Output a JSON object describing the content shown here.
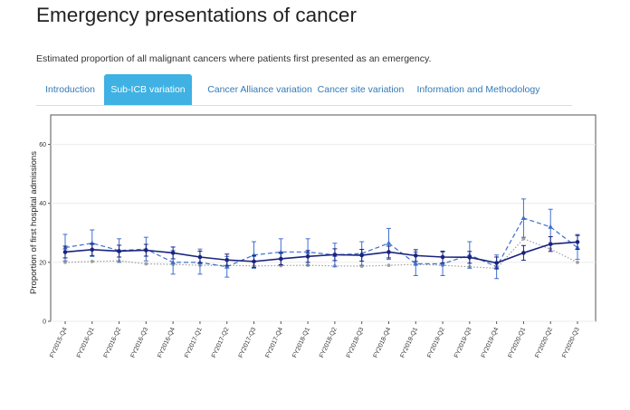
{
  "page": {
    "title": "Emergency presentations of cancer",
    "subtitle": "Estimated proportion of all malignant cancers where patients first presented as an emergency."
  },
  "tabs": [
    {
      "label": "Introduction",
      "active": false
    },
    {
      "label": "Sub-ICB variation",
      "active": true
    },
    {
      "label": "Cancer Alliance variation",
      "active": false
    },
    {
      "label": "Cancer site variation",
      "active": false
    },
    {
      "label": "Information and Methodology",
      "active": false
    }
  ],
  "colors": {
    "tab_active_bg": "#3fb1e3",
    "link": "#337ab7",
    "series_dark": "#1a237e",
    "series_blue": "#3d6fd1",
    "series_grey": "#9e9e9e"
  },
  "chart_data": {
    "type": "line",
    "ylabel": "Proportion of first hospital admissions",
    "xlabel": "",
    "ylim": [
      0,
      70
    ],
    "yticks": [
      0,
      20,
      40,
      60
    ],
    "grid": true,
    "legend": "none",
    "categories": [
      "FY2015-Q4",
      "FY2016-Q1",
      "FY2016-Q2",
      "FY2016-Q3",
      "FY2016-Q4",
      "FY2017-Q1",
      "FY2017-Q2",
      "FY2017-Q3",
      "FY2017-Q4",
      "FY2018-Q1",
      "FY2018-Q2",
      "FY2018-Q3",
      "FY2018-Q4",
      "FY2019-Q1",
      "FY2019-Q2",
      "FY2019-Q3",
      "FY2019-Q4",
      "FY2020-Q1",
      "FY2020-Q2",
      "FY2020-Q3"
    ],
    "series": [
      {
        "style": "solid",
        "marker": "circle",
        "color": "#1a237e",
        "values": [
          23.5,
          24.3,
          23.8,
          24.1,
          23.2,
          21.8,
          20.8,
          20.3,
          21.2,
          22.0,
          22.6,
          22.4,
          23.5,
          22.3,
          21.8,
          21.7,
          19.8,
          23.2,
          26.2,
          26.9
        ],
        "error_low": [
          21.5,
          22.3,
          21.8,
          22.1,
          21.2,
          19.8,
          18.8,
          18.3,
          19.2,
          20.0,
          20.6,
          20.4,
          21.5,
          20.3,
          19.8,
          19.7,
          17.8,
          20.7,
          23.7,
          24.4
        ],
        "error_high": [
          25.5,
          26.3,
          25.8,
          26.1,
          25.2,
          23.8,
          22.8,
          22.3,
          23.2,
          24.0,
          24.6,
          24.4,
          25.5,
          24.3,
          23.8,
          23.7,
          21.8,
          25.7,
          28.7,
          29.4
        ]
      },
      {
        "style": "dashed",
        "marker": "triangle",
        "color": "#3d6fd1",
        "values": [
          25.0,
          26.5,
          24.0,
          24.5,
          20.0,
          20.0,
          18.5,
          22.5,
          23.5,
          23.5,
          22.5,
          23.0,
          26.5,
          19.5,
          19.5,
          22.5,
          18.5,
          35.0,
          32.0,
          25.0
        ],
        "error_low": [
          20.5,
          22.0,
          20.0,
          20.5,
          16.0,
          16.0,
          15.0,
          18.0,
          19.0,
          19.0,
          18.5,
          19.0,
          21.0,
          15.5,
          15.5,
          18.0,
          14.5,
          28.5,
          26.0,
          21.0
        ],
        "error_high": [
          29.5,
          31.0,
          28.0,
          28.5,
          24.0,
          24.5,
          22.0,
          27.0,
          28.0,
          28.0,
          26.5,
          27.0,
          31.5,
          23.5,
          23.5,
          27.0,
          22.5,
          41.5,
          38.0,
          29.0
        ]
      },
      {
        "style": "dotted",
        "marker": "circle",
        "color": "#9e9e9e",
        "values": [
          20.0,
          20.3,
          20.5,
          19.5,
          19.3,
          19.0,
          19.0,
          18.8,
          18.9,
          19.0,
          18.8,
          18.7,
          19.0,
          19.3,
          19.0,
          18.5,
          18.0,
          28.0,
          24.5,
          20.0
        ],
        "error_low": null,
        "error_high": null
      }
    ]
  }
}
